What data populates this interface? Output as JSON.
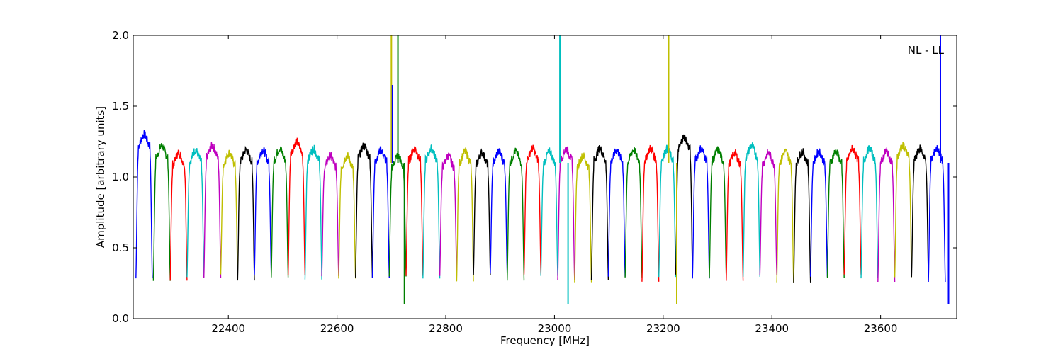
{
  "chart_data": {
    "type": "line",
    "title": "",
    "xlabel": "Frequency [MHz]",
    "ylabel": "Amplitude [arbitrary units]",
    "xlim": [
      22225,
      23740
    ],
    "ylim": [
      0.0,
      2.0
    ],
    "xticks": [
      22400,
      22600,
      22800,
      23000,
      23200,
      23400,
      23600
    ],
    "xtick_labels": [
      "22400",
      "22600",
      "22800",
      "23000",
      "23200",
      "23400",
      "23600"
    ],
    "yticks": [
      0.0,
      0.5,
      1.0,
      1.5,
      2.0
    ],
    "ytick_labels": [
      "0.0",
      "0.5",
      "1.0",
      "1.5",
      "2.0"
    ],
    "annotation": "NL - LL",
    "grid": false,
    "description_hint": "Repeated bandpass subbands, each ~30 MHz wide, amplitude ~1.1–1.3 inside the band and dropping to ~0.25–0.3 at the edges; colors cycle blue, green, red, cyan, magenta, olive, black.",
    "colors": [
      "#0000ff",
      "#007f00",
      "#ff0000",
      "#00bfbf",
      "#bf00bf",
      "#bfbf00",
      "#000000"
    ],
    "series": [
      {
        "x_start": 22230,
        "width": 30,
        "level": 1.3,
        "color": "#0000ff"
      },
      {
        "x_start": 22262,
        "width": 31,
        "level": 1.22,
        "color": "#007f00"
      },
      {
        "x_start": 22293,
        "width": 31,
        "level": 1.17,
        "color": "#ff0000"
      },
      {
        "x_start": 22324,
        "width": 31,
        "level": 1.19,
        "color": "#00bfbf"
      },
      {
        "x_start": 22355,
        "width": 31,
        "level": 1.22,
        "color": "#bf00bf"
      },
      {
        "x_start": 22386,
        "width": 31,
        "level": 1.17,
        "color": "#bfbf00"
      },
      {
        "x_start": 22417,
        "width": 31,
        "level": 1.19,
        "color": "#000000"
      },
      {
        "x_start": 22448,
        "width": 31,
        "level": 1.19,
        "color": "#0000ff"
      },
      {
        "x_start": 22479,
        "width": 31,
        "level": 1.2,
        "color": "#007f00"
      },
      {
        "x_start": 22510,
        "width": 31,
        "level": 1.25,
        "color": "#ff0000"
      },
      {
        "x_start": 22541,
        "width": 31,
        "level": 1.2,
        "color": "#00bfbf"
      },
      {
        "x_start": 22572,
        "width": 31,
        "level": 1.15,
        "color": "#bf00bf"
      },
      {
        "x_start": 22603,
        "width": 31,
        "level": 1.15,
        "color": "#bfbf00"
      },
      {
        "x_start": 22634,
        "width": 31,
        "level": 1.22,
        "color": "#000000"
      },
      {
        "x_start": 22665,
        "width": 31,
        "level": 1.19,
        "color": "#0000ff"
      },
      {
        "x_start": 22696,
        "width": 31,
        "level": 1.15,
        "color": "#007f00"
      },
      {
        "x_start": 22727,
        "width": 31,
        "level": 1.2,
        "color": "#ff0000"
      },
      {
        "x_start": 22758,
        "width": 31,
        "level": 1.2,
        "color": "#00bfbf"
      },
      {
        "x_start": 22789,
        "width": 31,
        "level": 1.15,
        "color": "#bf00bf"
      },
      {
        "x_start": 22820,
        "width": 31,
        "level": 1.18,
        "color": "#bfbf00"
      },
      {
        "x_start": 22851,
        "width": 31,
        "level": 1.17,
        "color": "#000000"
      },
      {
        "x_start": 22882,
        "width": 31,
        "level": 1.18,
        "color": "#0000ff"
      },
      {
        "x_start": 22913,
        "width": 31,
        "level": 1.18,
        "color": "#007f00"
      },
      {
        "x_start": 22944,
        "width": 31,
        "level": 1.2,
        "color": "#ff0000"
      },
      {
        "x_start": 22975,
        "width": 31,
        "level": 1.18,
        "color": "#00bfbf"
      },
      {
        "x_start": 23006,
        "width": 31,
        "level": 1.2,
        "color": "#bf00bf"
      },
      {
        "x_start": 23037,
        "width": 31,
        "level": 1.15,
        "color": "#bfbf00"
      },
      {
        "x_start": 23068,
        "width": 31,
        "level": 1.2,
        "color": "#000000"
      },
      {
        "x_start": 23099,
        "width": 31,
        "level": 1.19,
        "color": "#0000ff"
      },
      {
        "x_start": 23130,
        "width": 31,
        "level": 1.19,
        "color": "#007f00"
      },
      {
        "x_start": 23161,
        "width": 31,
        "level": 1.2,
        "color": "#ff0000"
      },
      {
        "x_start": 23192,
        "width": 31,
        "level": 1.2,
        "color": "#00bfbf"
      },
      {
        "x_start": 23223,
        "width": 31,
        "level": 1.28,
        "color": "#000000"
      },
      {
        "x_start": 23254,
        "width": 31,
        "level": 1.2,
        "color": "#0000ff"
      },
      {
        "x_start": 23285,
        "width": 31,
        "level": 1.19,
        "color": "#007f00"
      },
      {
        "x_start": 23316,
        "width": 31,
        "level": 1.17,
        "color": "#ff0000"
      },
      {
        "x_start": 23347,
        "width": 31,
        "level": 1.22,
        "color": "#00bfbf"
      },
      {
        "x_start": 23378,
        "width": 31,
        "level": 1.17,
        "color": "#bf00bf"
      },
      {
        "x_start": 23409,
        "width": 31,
        "level": 1.18,
        "color": "#bfbf00"
      },
      {
        "x_start": 23440,
        "width": 31,
        "level": 1.18,
        "color": "#000000"
      },
      {
        "x_start": 23471,
        "width": 31,
        "level": 1.18,
        "color": "#0000ff"
      },
      {
        "x_start": 23502,
        "width": 31,
        "level": 1.18,
        "color": "#007f00"
      },
      {
        "x_start": 23533,
        "width": 31,
        "level": 1.2,
        "color": "#ff0000"
      },
      {
        "x_start": 23564,
        "width": 31,
        "level": 1.2,
        "color": "#00bfbf"
      },
      {
        "x_start": 23595,
        "width": 31,
        "level": 1.18,
        "color": "#bf00bf"
      },
      {
        "x_start": 23626,
        "width": 31,
        "level": 1.22,
        "color": "#bfbf00"
      },
      {
        "x_start": 23657,
        "width": 31,
        "level": 1.2,
        "color": "#000000"
      },
      {
        "x_start": 23688,
        "width": 31,
        "level": 1.2,
        "color": "#0000ff"
      }
    ],
    "rfi_spikes": [
      {
        "x": 22700,
        "ymax": 2.0,
        "color": "#bfbf00"
      },
      {
        "x": 22702,
        "ymax": 1.65,
        "color": "#0000ff"
      },
      {
        "x": 22712,
        "ymax": 2.0,
        "color": "#007f00"
      },
      {
        "x": 22724,
        "ymin": 0.1,
        "color": "#007f00"
      },
      {
        "x": 23010,
        "ymax": 2.0,
        "color": "#00bfbf"
      },
      {
        "x": 23025,
        "ymin": 0.1,
        "color": "#00bfbf"
      },
      {
        "x": 23210,
        "ymax": 2.0,
        "color": "#bfbf00"
      },
      {
        "x": 23225,
        "ymin": 0.1,
        "color": "#bfbf00"
      },
      {
        "x": 23710,
        "ymax": 2.0,
        "color": "#0000ff"
      },
      {
        "x": 23725,
        "ymin": 0.1,
        "color": "#0000ff"
      }
    ]
  }
}
